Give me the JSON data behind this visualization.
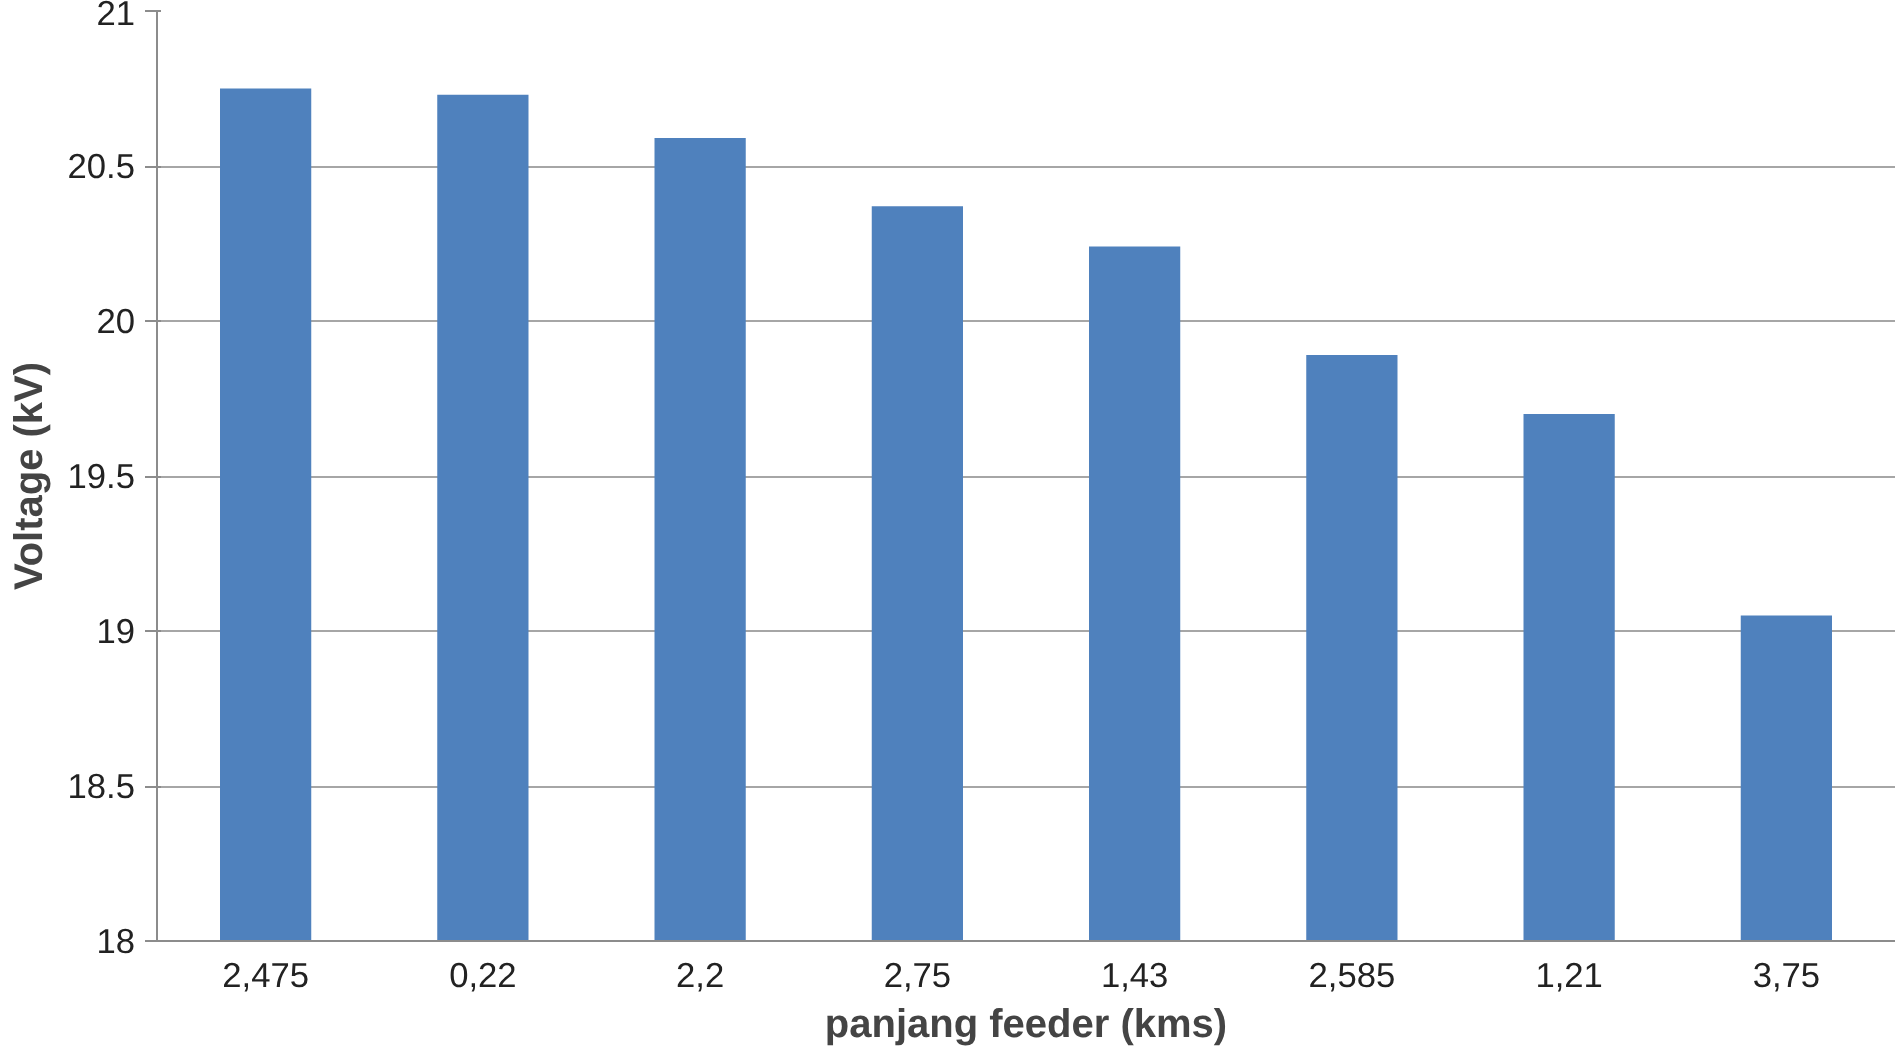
{
  "chart_data": {
    "type": "bar",
    "xlabel": "panjang feeder (kms)",
    "ylabel": "Voltage (kV)",
    "categories": [
      "2,475",
      "0,22",
      "2,2",
      "2,75",
      "1,43",
      "2,585",
      "1,21",
      "3,75"
    ],
    "values": [
      20.75,
      20.73,
      20.59,
      20.37,
      20.24,
      19.89,
      19.7,
      19.05
    ],
    "color": "#4f81bd",
    "ylim": [
      18,
      21
    ],
    "yticks": [
      18,
      18.5,
      19,
      19.5,
      20,
      20.5,
      21
    ],
    "grid": "y"
  }
}
